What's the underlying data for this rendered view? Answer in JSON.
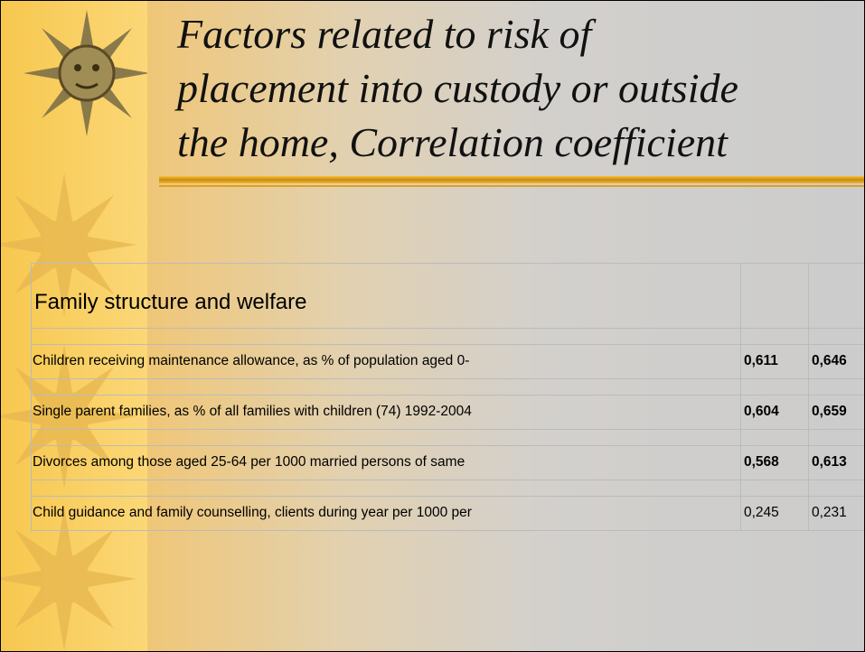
{
  "title": {
    "lines": [
      "Factors related to risk of",
      "placement into custody or outside",
      "the home, Correlation coefficient"
    ]
  },
  "table": {
    "header": "Family structure and welfare",
    "rows": [
      {
        "label": "Children receiving maintenance allowance, as % of population aged 0-",
        "values": [
          "0,611",
          "0,646"
        ],
        "bold": true
      },
      {
        "label": "Single parent families, as % of all families with children (74) 1992-2004",
        "values": [
          "0,604",
          "0,659"
        ],
        "bold": true
      },
      {
        "label": "Divorces among those aged 25-64 per 1000 married persons of same",
        "values": [
          "0,568",
          "0,613"
        ],
        "bold": true
      },
      {
        "label": "Child guidance and family counselling, clients during year per 1000 per",
        "values": [
          "0,245",
          "0,231"
        ],
        "bold": false
      }
    ]
  }
}
